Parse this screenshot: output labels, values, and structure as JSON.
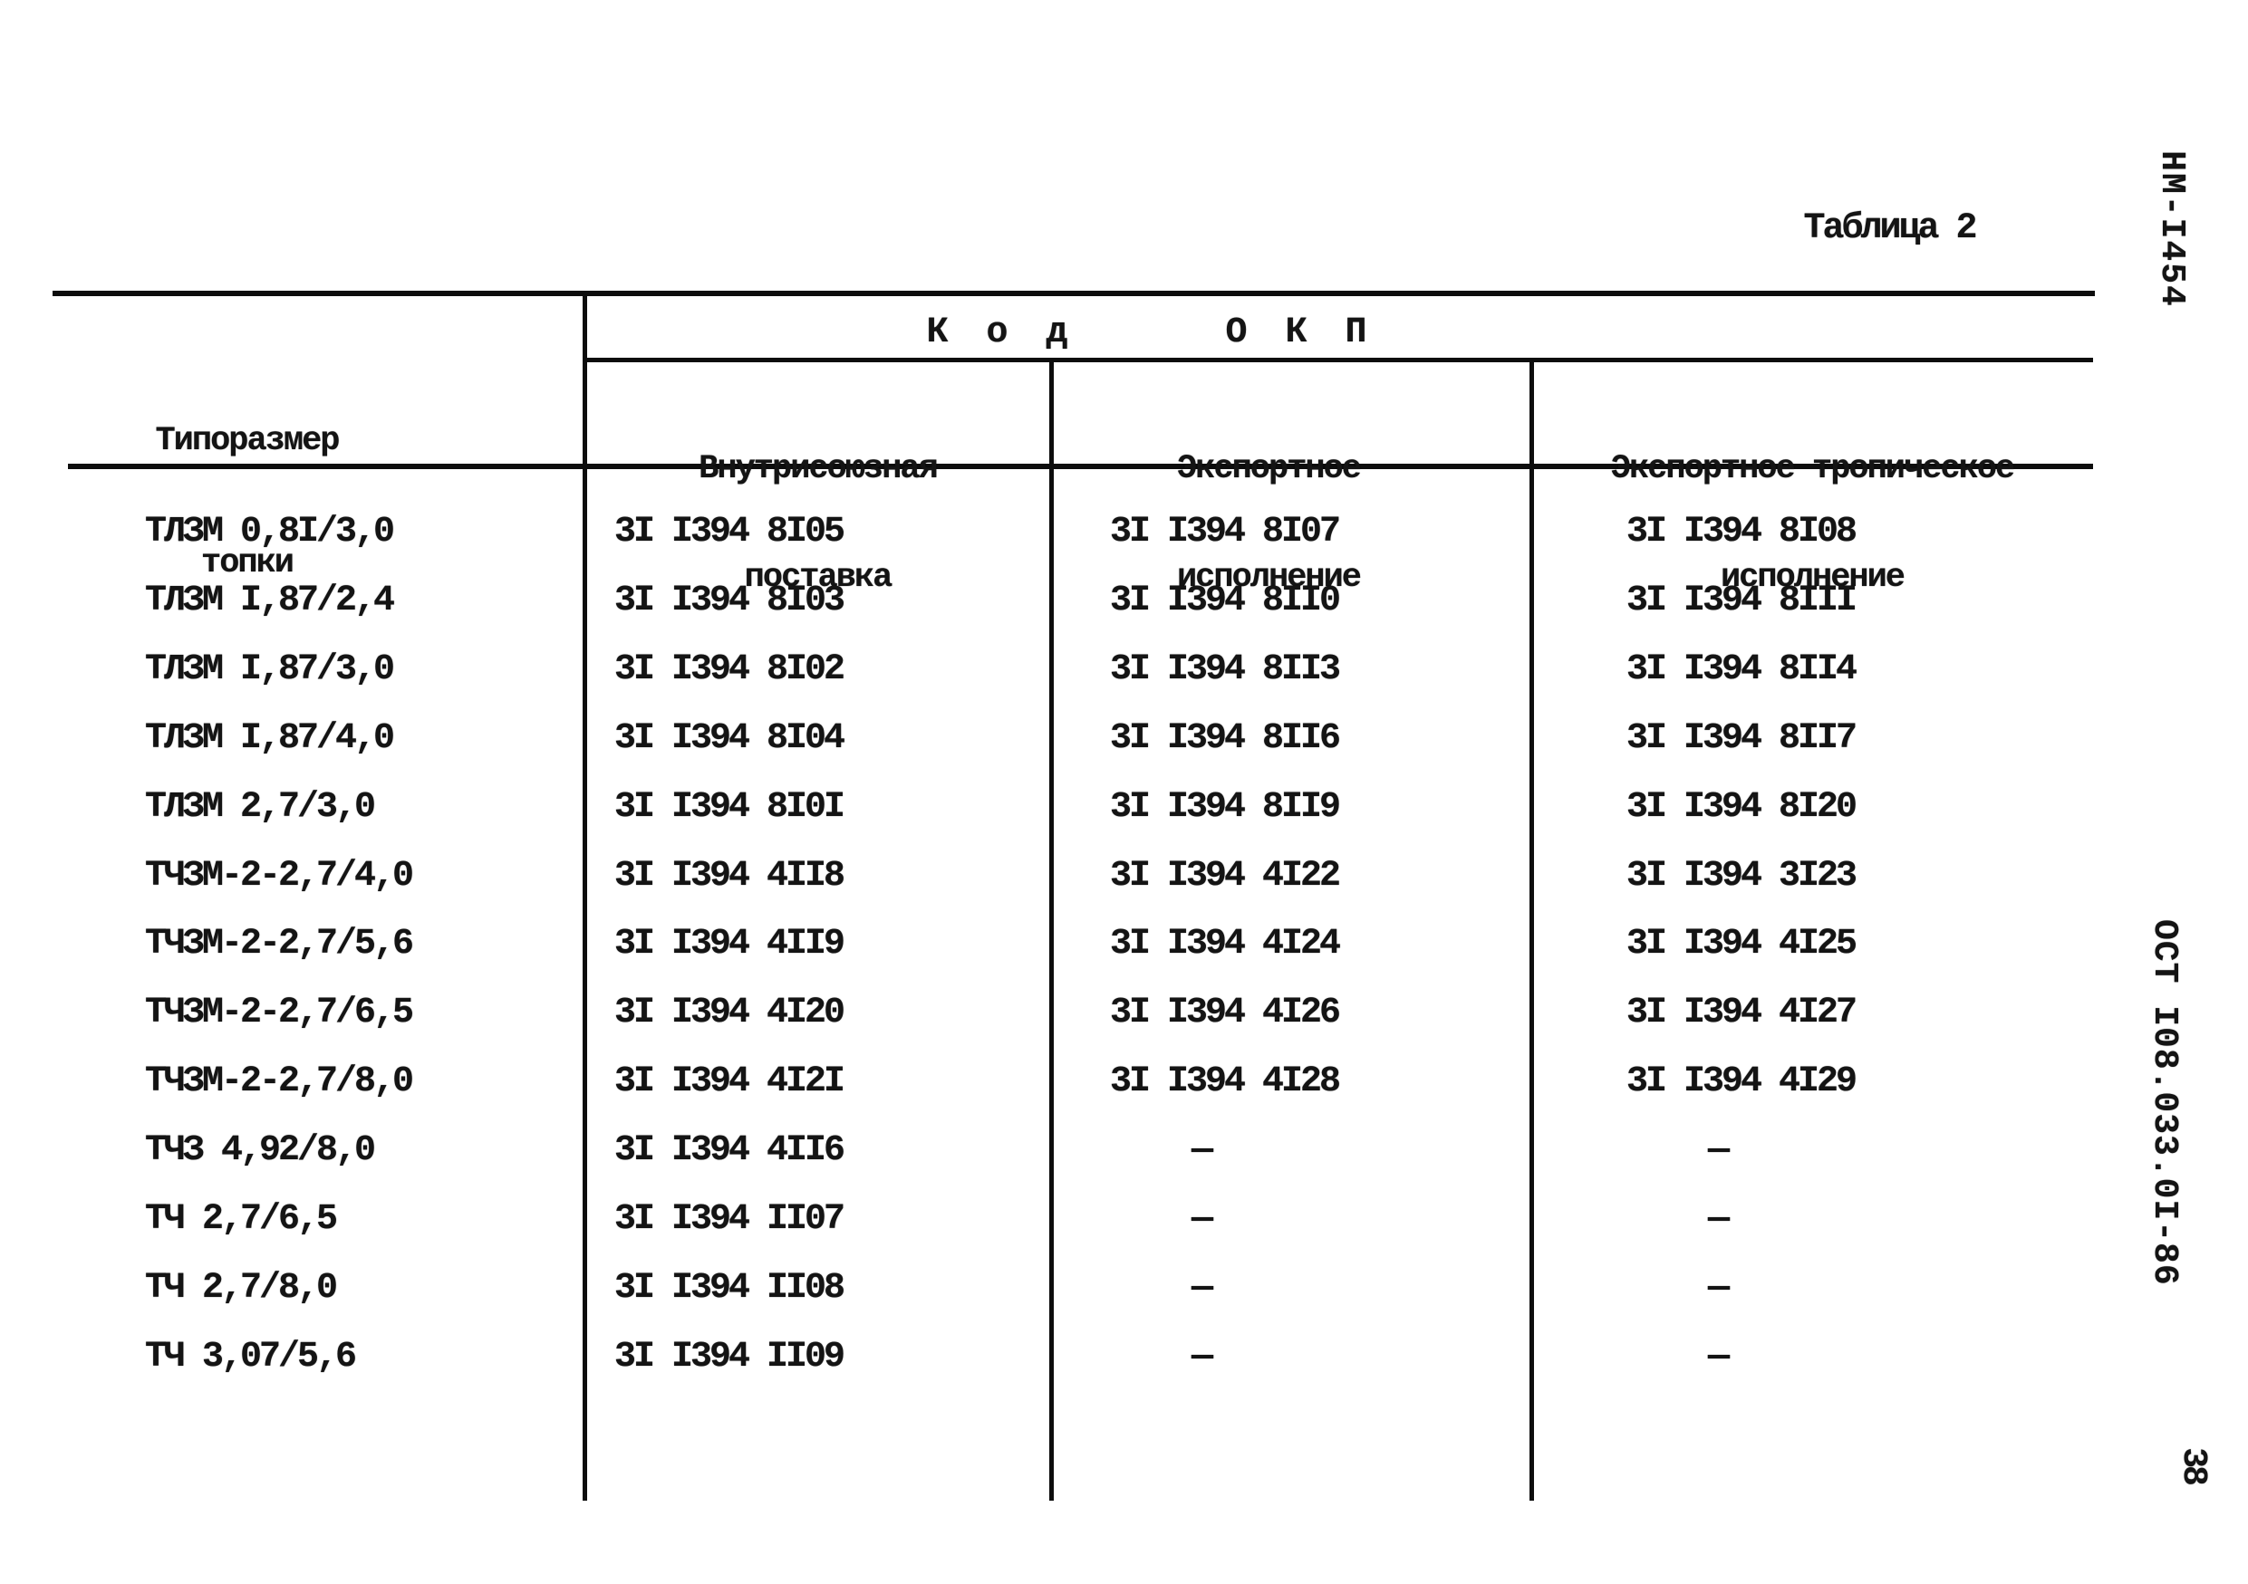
{
  "page": {
    "title": "Таблица 2",
    "doc_code_vertical": "НМ-I454",
    "standard_ref_vertical": "ОСТ I08.033.0I-86",
    "page_number": "38"
  },
  "table": {
    "col1_header": {
      "lines": [
        "Типоразмер",
        "топки"
      ]
    },
    "group_header": "К о д     О К П",
    "sub_headers": [
      {
        "lines": [
          "Внутрисоюзная",
          "поставка"
        ]
      },
      {
        "lines": [
          "Экспортное",
          "исполнение"
        ]
      },
      {
        "lines": [
          "Экспортное тропическое",
          "исполнение"
        ]
      }
    ],
    "rows": [
      {
        "type": "ТЛЗМ 0,8I/3,0",
        "codes": [
          "3I I394 8I05",
          "3I I394 8I07",
          "3I I394 8I08"
        ]
      },
      {
        "type": "ТЛЗМ I,87/2,4",
        "codes": [
          "3I I394 8I03",
          "3I I394 8II0",
          "3I I394 8III"
        ]
      },
      {
        "type": "ТЛЗМ I,87/3,0",
        "codes": [
          "3I I394 8I02",
          "3I I394 8II3",
          "3I I394 8II4"
        ]
      },
      {
        "type": "ТЛЗМ I,87/4,0",
        "codes": [
          "3I I394 8I04",
          "3I I394 8II6",
          "3I I394 8II7"
        ]
      },
      {
        "type": "ТЛЗМ 2,7/3,0",
        "codes": [
          "3I I394 8I0I",
          "3I I394 8II9",
          "3I I394 8I20"
        ]
      },
      {
        "type": "ТЧЗМ-2-2,7/4,0",
        "codes": [
          "3I I394 4II8",
          "3I I394 4I22",
          "3I I394 3I23"
        ]
      },
      {
        "type": "ТЧЗМ-2-2,7/5,6",
        "codes": [
          "3I I394 4II9",
          "3I I394 4I24",
          "3I I394 4I25"
        ]
      },
      {
        "type": "ТЧЗМ-2-2,7/6,5",
        "codes": [
          "3I I394 4I20",
          "3I I394 4I26",
          "3I I394 4I27"
        ]
      },
      {
        "type": "ТЧЗМ-2-2,7/8,0",
        "codes": [
          "3I I394 4I2I",
          "3I I394 4I28",
          "3I I394 4I29"
        ]
      },
      {
        "type": "ТЧЗ 4,92/8,0",
        "codes": [
          "3I I394 4II6",
          "—",
          "—"
        ]
      },
      {
        "type": "ТЧ 2,7/6,5",
        "codes": [
          "3I I394 II07",
          "—",
          "—"
        ]
      },
      {
        "type": "ТЧ 2,7/8,0",
        "codes": [
          "3I I394 II08",
          "—",
          "—"
        ]
      },
      {
        "type": "ТЧ 3,07/5,6",
        "codes": [
          "3I I394 II09",
          "—",
          "—"
        ]
      }
    ]
  }
}
